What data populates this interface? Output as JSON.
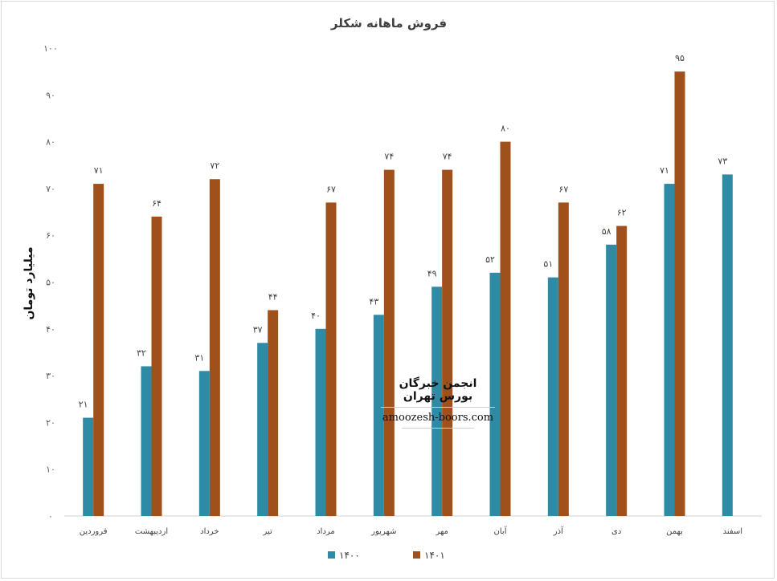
{
  "chart_data": {
    "type": "bar",
    "title": "فروش ماهانه شکلر",
    "ylabel": "میلیارد تومان",
    "xlabel": "",
    "ylim": [
      0,
      100
    ],
    "y_ticks": [
      0,
      10,
      20,
      30,
      40,
      50,
      60,
      70,
      80,
      90,
      100
    ],
    "y_tick_labels": [
      "۰",
      "۱۰",
      "۲۰",
      "۳۰",
      "۴۰",
      "۵۰",
      "۶۰",
      "۷۰",
      "۸۰",
      "۹۰",
      "۱۰۰"
    ],
    "categories": [
      "فروردین",
      "اردیبهشت",
      "خرداد",
      "تیر",
      "مرداد",
      "شهریور",
      "مهر",
      "آبان",
      "آذر",
      "دی",
      "بهمن",
      "اسفند"
    ],
    "series": [
      {
        "name": "۱۴۰۰",
        "color": "#2e8ba5",
        "values": [
          21,
          32,
          31,
          37,
          40,
          43,
          49,
          52,
          51,
          58,
          71,
          73
        ],
        "labels": [
          "۲۱",
          "۳۲",
          "۳۱",
          "۳۷",
          "۴۰",
          "۴۳",
          "۴۹",
          "۵۲",
          "۵۱",
          "۵۸",
          "۷۱",
          "۷۳"
        ]
      },
      {
        "name": "۱۴۰۱",
        "color": "#a0501a",
        "values": [
          71,
          64,
          72,
          44,
          67,
          74,
          74,
          80,
          67,
          62,
          95,
          null
        ],
        "labels": [
          "۷۱",
          "۶۴",
          "۷۲",
          "۴۴",
          "۶۷",
          "۷۴",
          "۷۴",
          "۸۰",
          "۶۷",
          "۶۲",
          "۹۵",
          null
        ]
      }
    ],
    "grid": false,
    "legend_position": "bottom"
  },
  "watermark": {
    "title": "انجمن خبرگان بورس تهران",
    "url": "amoozesh-boors.com"
  }
}
